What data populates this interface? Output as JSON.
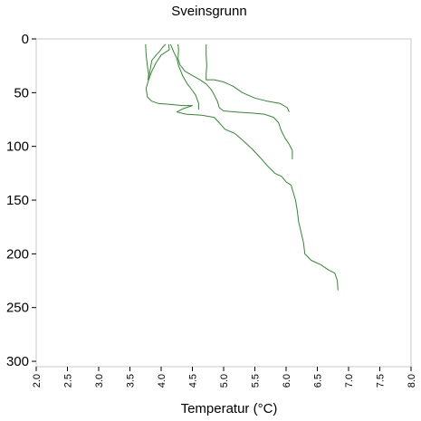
{
  "chart_data": {
    "type": "line",
    "title": "Sveinsgrunn",
    "xlabel": "Temperatur (°C)",
    "ylabel": "",
    "xlim": [
      2.0,
      8.0
    ],
    "ylim": [
      0,
      305
    ],
    "y_inverted": true,
    "x_ticks": [
      "2.0",
      "2.5",
      "3.0",
      "3.5",
      "4.0",
      "4.5",
      "5.0",
      "5.5",
      "6.0",
      "6.5",
      "7.0",
      "7.5",
      "8.0"
    ],
    "y_ticks": [
      "0",
      "50",
      "100",
      "150",
      "200",
      "250",
      "300"
    ],
    "grid": false,
    "legend": "none",
    "line_color": "#2e8b2e",
    "series": [
      {
        "points": [
          [
            3.75,
            5
          ],
          [
            3.76,
            15
          ],
          [
            3.78,
            25
          ],
          [
            3.8,
            33
          ],
          [
            3.79,
            38
          ],
          [
            3.82,
            30
          ],
          [
            3.85,
            20
          ],
          [
            3.92,
            15
          ],
          [
            3.97,
            12
          ],
          [
            4.02,
            8
          ],
          [
            4.07,
            5
          ]
        ]
      },
      {
        "points": [
          [
            4.12,
            5
          ],
          [
            4.13,
            10
          ],
          [
            4.0,
            15
          ],
          [
            3.92,
            22
          ],
          [
            3.85,
            30
          ],
          [
            3.8,
            38
          ],
          [
            3.76,
            46
          ],
          [
            3.78,
            54
          ],
          [
            3.85,
            58
          ],
          [
            3.95,
            60
          ],
          [
            4.15,
            61
          ],
          [
            4.35,
            62
          ],
          [
            4.5,
            62
          ],
          [
            4.35,
            65
          ],
          [
            4.25,
            68
          ],
          [
            4.4,
            70
          ],
          [
            4.65,
            71
          ],
          [
            4.85,
            73
          ],
          [
            4.93,
            78
          ],
          [
            5.02,
            84
          ],
          [
            5.18,
            88
          ],
          [
            5.3,
            94
          ],
          [
            5.45,
            102
          ],
          [
            5.58,
            110
          ],
          [
            5.7,
            118
          ],
          [
            5.82,
            125
          ],
          [
            5.93,
            128
          ],
          [
            6.0,
            133
          ],
          [
            6.08,
            136
          ],
          [
            6.1,
            140
          ],
          [
            6.15,
            150
          ],
          [
            6.18,
            160
          ],
          [
            6.2,
            170
          ],
          [
            6.24,
            180
          ],
          [
            6.28,
            190
          ],
          [
            6.3,
            200
          ],
          [
            6.4,
            206
          ],
          [
            6.55,
            210
          ],
          [
            6.68,
            215
          ],
          [
            6.78,
            218
          ],
          [
            6.82,
            225
          ],
          [
            6.83,
            234
          ]
        ]
      },
      {
        "points": [
          [
            4.15,
            5
          ],
          [
            4.2,
            12
          ],
          [
            4.25,
            18
          ],
          [
            4.28,
            25
          ],
          [
            4.35,
            35
          ],
          [
            4.42,
            42
          ],
          [
            4.5,
            48
          ],
          [
            4.55,
            52
          ],
          [
            4.6,
            60
          ],
          [
            4.6,
            66
          ]
        ]
      },
      {
        "points": [
          [
            4.27,
            5
          ],
          [
            4.28,
            10
          ],
          [
            4.27,
            18
          ],
          [
            4.3,
            24
          ],
          [
            4.38,
            30
          ],
          [
            4.5,
            34
          ],
          [
            4.62,
            38
          ],
          [
            4.72,
            42
          ],
          [
            4.8,
            47
          ],
          [
            4.85,
            52
          ],
          [
            4.9,
            58
          ],
          [
            4.93,
            64
          ],
          [
            5.0,
            67
          ],
          [
            5.2,
            68
          ],
          [
            5.45,
            69
          ],
          [
            5.65,
            70
          ],
          [
            5.8,
            73
          ],
          [
            5.88,
            78
          ],
          [
            5.92,
            85
          ],
          [
            5.98,
            92
          ],
          [
            6.05,
            98
          ],
          [
            6.1,
            104
          ],
          [
            6.1,
            112
          ]
        ]
      },
      {
        "points": [
          [
            4.72,
            5
          ],
          [
            4.72,
            15
          ],
          [
            4.73,
            25
          ],
          [
            4.72,
            32
          ],
          [
            4.72,
            38
          ],
          [
            4.85,
            38
          ],
          [
            5.0,
            40
          ],
          [
            5.15,
            44
          ],
          [
            5.3,
            50
          ],
          [
            5.5,
            55
          ],
          [
            5.7,
            58
          ],
          [
            5.9,
            60
          ],
          [
            6.02,
            64
          ],
          [
            6.05,
            68
          ]
        ]
      }
    ]
  }
}
